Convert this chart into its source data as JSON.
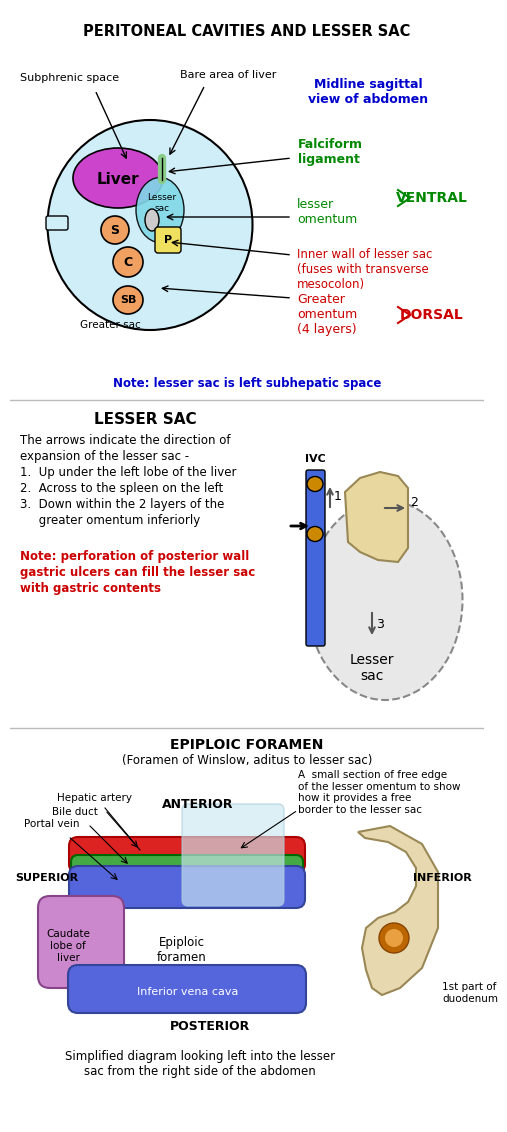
{
  "title1": "PERITONEAL CAVITIES AND LESSER SAC",
  "title2": "LESSER SAC",
  "title3": "EPIPLOIC FORAMEN",
  "title3_sub": "(Foramen of Winslow, aditus to lesser sac)",
  "section1_labels": {
    "subphrenic": "Subphrenic space",
    "bare_area": "Bare area of liver",
    "midline": "Midline sagittal\nview of abdomen",
    "falciform": "Falciform\nligament",
    "ventral": "VENTRAL",
    "lesser_omentum": "lesser\nomentum",
    "inner_wall": "Inner wall of lesser sac\n(fuses with transverse\nmesocolon)",
    "greater_omentum": "Greater\nomentum\n(4 layers)",
    "dorsal": "DORSAL",
    "note1": "Note: lesser sac is left subhepatic space",
    "liver": "Liver",
    "lesser_sac": "Lesser\nsac",
    "greater_sac": "Greater sac",
    "S": "S",
    "C": "C",
    "SB": "SB",
    "P": "P"
  },
  "section2_text": [
    "The arrows indicate the direction of",
    "expansion of the lesser sac -",
    "1.  Up under the left lobe of the liver",
    "2.  Across to the spleen on the left",
    "3.  Down within the 2 layers of the",
    "     greater omentum inferiorly"
  ],
  "section2_note": "Note: perforation of posterior wall\ngastric ulcers can fill the lesser sac\nwith gastric contents",
  "section2_ivc": "IVC",
  "section2_lesser_sac": "Lesser\nsac",
  "section3_labels": {
    "hepatic": "Hepatic artery",
    "bile": "Bile duct",
    "portal": "Portal vein",
    "superior": "SUPERIOR",
    "inferior": "INFERIOR",
    "anterior": "ANTERIOR",
    "posterior": "POSTERIOR",
    "caudate": "Caudate\nlobe of\nliver",
    "epiploic": "Epiploic\nforamen",
    "ivc_label": "Inferior vena cava",
    "duodenum": "1st part of\nduodenum",
    "free_edge": "A  small section of free edge\nof the lesser omentum to show\nhow it provides a free\nborder to the lesser sac",
    "simplified": "Simplified diagram looking left into the lesser\nsac from the right side of the abdomen"
  },
  "colors": {
    "liver": "#cc44cc",
    "lesser_sac_fill": "#80d8e8",
    "body_fill": "#d0eef8",
    "S_fill": "#f0a060",
    "C_fill": "#f0a060",
    "SB_fill": "#f0a060",
    "P_fill": "#f0e060",
    "falciform_color": "#008800",
    "ventral_color": "#008800",
    "dorsal_color": "#cc0000",
    "inner_wall_color": "#cc0000",
    "greater_omentum_color": "#cc0000",
    "note1_color": "#0000cc",
    "midline_color": "#0000cc",
    "note2_color": "#cc0000",
    "red_tube": "#dd2222",
    "green_tube": "#44aa44",
    "blue_tube": "#5566dd",
    "purple_caudate": "#cc88cc",
    "ivc_blue": "#4466dd",
    "duodenum_fill": "#e8d8b0",
    "stomach_fill": "#e8d8a0"
  }
}
